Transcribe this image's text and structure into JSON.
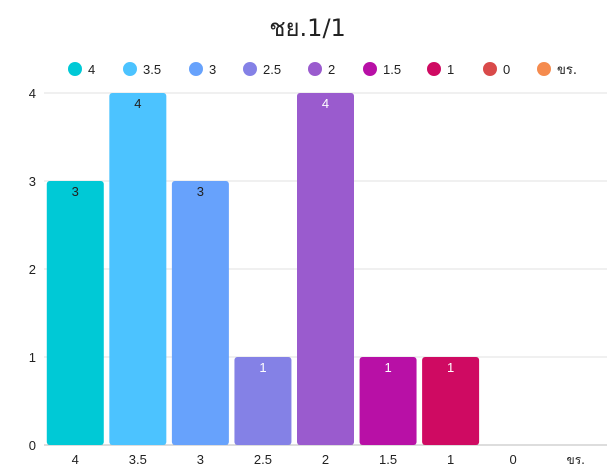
{
  "chart_data": {
    "type": "bar",
    "title": "ชย.1/1",
    "categories": [
      "4",
      "3.5",
      "3",
      "2.5",
      "2",
      "1.5",
      "1",
      "0",
      "ขร."
    ],
    "values": [
      3,
      4,
      3,
      1,
      4,
      1,
      1,
      0,
      0
    ],
    "colors": [
      "#00C9D6",
      "#4CC3FF",
      "#67A2FC",
      "#8481E6",
      "#9A5BCE",
      "#B810A6",
      "#CF0A62",
      "#D94A4A",
      "#F58B4E"
    ],
    "label_colors": [
      "#222222",
      "#222222",
      "#222222",
      "#ffffff",
      "#ffffff",
      "#ffffff",
      "#ffffff",
      "#ffffff",
      "#ffffff"
    ],
    "ylim": [
      0,
      4
    ],
    "yticks": [
      "0",
      "1",
      "2",
      "3",
      "4"
    ],
    "grid": true,
    "legend_position": "top"
  }
}
